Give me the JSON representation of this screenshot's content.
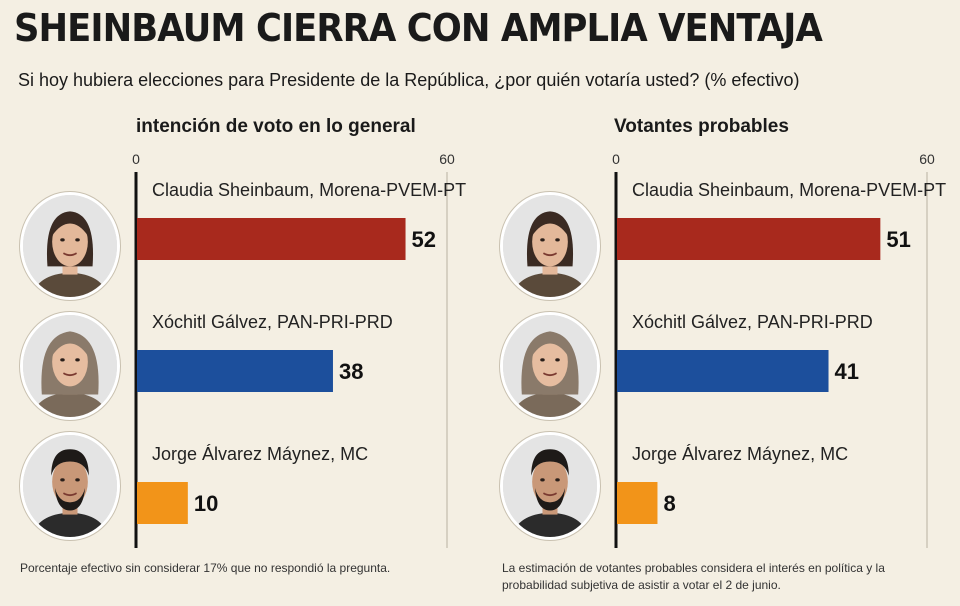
{
  "header": {
    "title": "SHEINBAUM CIERRA CON AMPLIA VENTAJA",
    "subtitle": "Si hoy hubiera elecciones para Presidente de la República, ¿por quién votaría usted? (% efectivo)"
  },
  "chart_data": [
    {
      "type": "bar",
      "title": "intención de voto en lo general",
      "categories": [
        "Claudia Sheinbaum, Morena-PVEM-PT",
        "Xóchitl Gálvez, PAN-PRI-PRD",
        "Jorge Álvarez Máynez, MC"
      ],
      "values": [
        52,
        38,
        10
      ],
      "colors": [
        "#a8291d",
        "#1c4f9c",
        "#f29419"
      ],
      "xlim": [
        0,
        60
      ],
      "ticks": [
        0,
        60
      ],
      "grid": true,
      "orientation": "horizontal",
      "note": "Porcentaje efectivo sin considerar 17% que no respondió la pregunta."
    },
    {
      "type": "bar",
      "title": "Votantes probables",
      "categories": [
        "Claudia Sheinbaum, Morena-PVEM-PT",
        "Xóchitl Gálvez, PAN-PRI-PRD",
        "Jorge Álvarez Máynez, MC"
      ],
      "values": [
        51,
        41,
        8
      ],
      "colors": [
        "#a8291d",
        "#1c4f9c",
        "#f29419"
      ],
      "xlim": [
        0,
        60
      ],
      "ticks": [
        0,
        60
      ],
      "grid": true,
      "orientation": "horizontal",
      "note": "La estimación de votantes probables considera el interés en política y la probabilidad subjetiva de asistir a votar el 2 de junio."
    }
  ],
  "avatars": [
    {
      "icon": "sheinbaum-portrait-icon",
      "hair": "#3a2a22",
      "skin": "#e3b89a",
      "shirt": "#5a4a3a"
    },
    {
      "icon": "galvez-portrait-icon",
      "hair": "#8a7a6a",
      "skin": "#e6bda0",
      "shirt": "#7a6a5a"
    },
    {
      "icon": "maynez-portrait-icon",
      "hair": "#1e1a18",
      "skin": "#c99878",
      "shirt": "#2b2b2b"
    }
  ]
}
